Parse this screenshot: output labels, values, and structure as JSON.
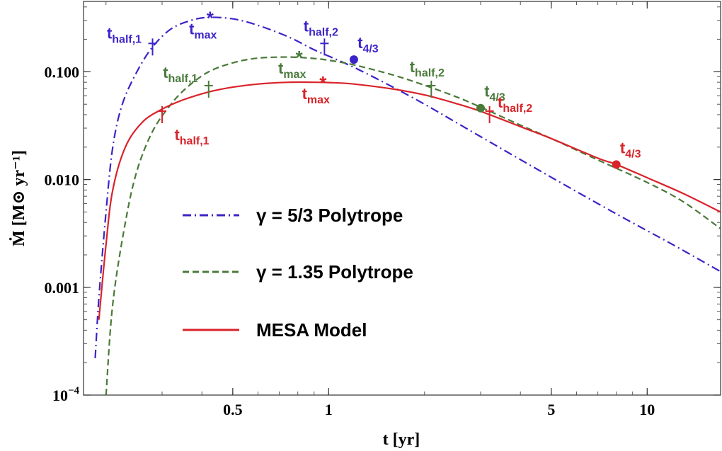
{
  "chart_data": {
    "type": "line",
    "title": "",
    "xlabel": "t [yr]",
    "ylabel": "Ṁ [M⊙ yr⁻¹]",
    "x_scale": "log",
    "y_scale": "log",
    "xlim": [
      0.17,
      17
    ],
    "ylim": [
      0.0001,
      0.45
    ],
    "x_ticks": [
      {
        "value": 0.5,
        "label": "0.5"
      },
      {
        "value": 1,
        "label": "1"
      },
      {
        "value": 5,
        "label": "5"
      },
      {
        "value": 10,
        "label": "10"
      }
    ],
    "y_ticks": [
      {
        "value": 0.0001,
        "label_base": "10",
        "label_exp": "−4"
      },
      {
        "value": 0.001,
        "label": "0.001"
      },
      {
        "value": 0.01,
        "label": "0.010"
      },
      {
        "value": 0.1,
        "label": "0.100"
      }
    ],
    "grid": false,
    "legend_position": "center-left",
    "series": [
      {
        "name": "γ = 5/3 Polytrope",
        "color": "#3b24c8",
        "dash": "dashdot",
        "x": [
          0.185,
          0.19,
          0.2,
          0.21,
          0.225,
          0.25,
          0.28,
          0.32,
          0.37,
          0.42,
          0.5,
          0.6,
          0.75,
          0.9,
          1.0,
          1.2,
          1.5,
          2.0,
          3.0,
          5.0,
          8.0,
          12.0,
          17.0
        ],
        "y": [
          0.00022,
          0.0008,
          0.005,
          0.02,
          0.05,
          0.1,
          0.17,
          0.25,
          0.3,
          0.32,
          0.31,
          0.27,
          0.21,
          0.16,
          0.14,
          0.11,
          0.079,
          0.05,
          0.025,
          0.0105,
          0.0048,
          0.0025,
          0.0014
        ]
      },
      {
        "name": "γ = 1.35 Polytrope",
        "color": "#4a7a3a",
        "dash": "dashed",
        "x": [
          0.2,
          0.21,
          0.23,
          0.25,
          0.28,
          0.32,
          0.36,
          0.42,
          0.5,
          0.6,
          0.75,
          0.9,
          1.0,
          1.2,
          1.6,
          2.0,
          2.5,
          3.0,
          4.0,
          5.0,
          7.0,
          10.0,
          13.0,
          17.0
        ],
        "y": [
          0.0001,
          0.0007,
          0.004,
          0.012,
          0.028,
          0.05,
          0.072,
          0.1,
          0.121,
          0.134,
          0.137,
          0.133,
          0.128,
          0.116,
          0.093,
          0.075,
          0.059,
          0.047,
          0.032,
          0.024,
          0.0152,
          0.0094,
          0.0062,
          0.0035
        ]
      },
      {
        "name": "MESA Model",
        "color": "#d9232a",
        "dash": "solid",
        "x": [
          0.19,
          0.2,
          0.21,
          0.23,
          0.26,
          0.3,
          0.35,
          0.42,
          0.5,
          0.6,
          0.75,
          0.9,
          1.0,
          1.2,
          1.6,
          2.0,
          2.5,
          3.0,
          4.0,
          5.0,
          7.0,
          8.0,
          10.0,
          13.0,
          17.0
        ],
        "y": [
          0.0005,
          0.0025,
          0.008,
          0.02,
          0.034,
          0.045,
          0.055,
          0.065,
          0.072,
          0.077,
          0.08,
          0.08,
          0.0795,
          0.077,
          0.069,
          0.061,
          0.051,
          0.043,
          0.031,
          0.024,
          0.0158,
          0.0138,
          0.0104,
          0.0074,
          0.005
        ]
      }
    ],
    "annotations": [
      {
        "text_main": "t",
        "text_sub": "half,1",
        "kind": "dagger",
        "x": 0.28,
        "y": 0.17,
        "series": 0
      },
      {
        "text_main": "t",
        "text_sub": "max",
        "kind": "star",
        "x": 0.42,
        "y": 0.32,
        "series": 0
      },
      {
        "text_main": "t",
        "text_sub": "half,2",
        "kind": "dagger",
        "x": 0.97,
        "y": 0.17,
        "series": 0
      },
      {
        "text_main": "t",
        "text_sub": "4/3",
        "kind": "dot",
        "x": 1.2,
        "y": 0.13,
        "series": 0
      },
      {
        "text_main": "t",
        "text_sub": "half,1",
        "kind": "dagger",
        "x": 0.42,
        "y": 0.069,
        "series": 1
      },
      {
        "text_main": "t",
        "text_sub": "max",
        "kind": "star",
        "x": 0.8,
        "y": 0.138,
        "series": 1
      },
      {
        "text_main": "t",
        "text_sub": "half,2",
        "kind": "dagger",
        "x": 2.1,
        "y": 0.069,
        "series": 1
      },
      {
        "text_main": "t",
        "text_sub": "4/3",
        "kind": "dot",
        "x": 3.0,
        "y": 0.046,
        "series": 1
      },
      {
        "text_main": "t",
        "text_sub": "half,1",
        "kind": "dagger",
        "x": 0.3,
        "y": 0.04,
        "series": 2
      },
      {
        "text_main": "t",
        "text_sub": "max",
        "kind": "star",
        "x": 0.95,
        "y": 0.08,
        "series": 2
      },
      {
        "text_main": "t",
        "text_sub": "half,2",
        "kind": "dagger",
        "x": 3.2,
        "y": 0.04,
        "series": 2
      },
      {
        "text_main": "t",
        "text_sub": "4/3",
        "kind": "dot",
        "x": 8.0,
        "y": 0.0138,
        "series": 2
      }
    ]
  }
}
